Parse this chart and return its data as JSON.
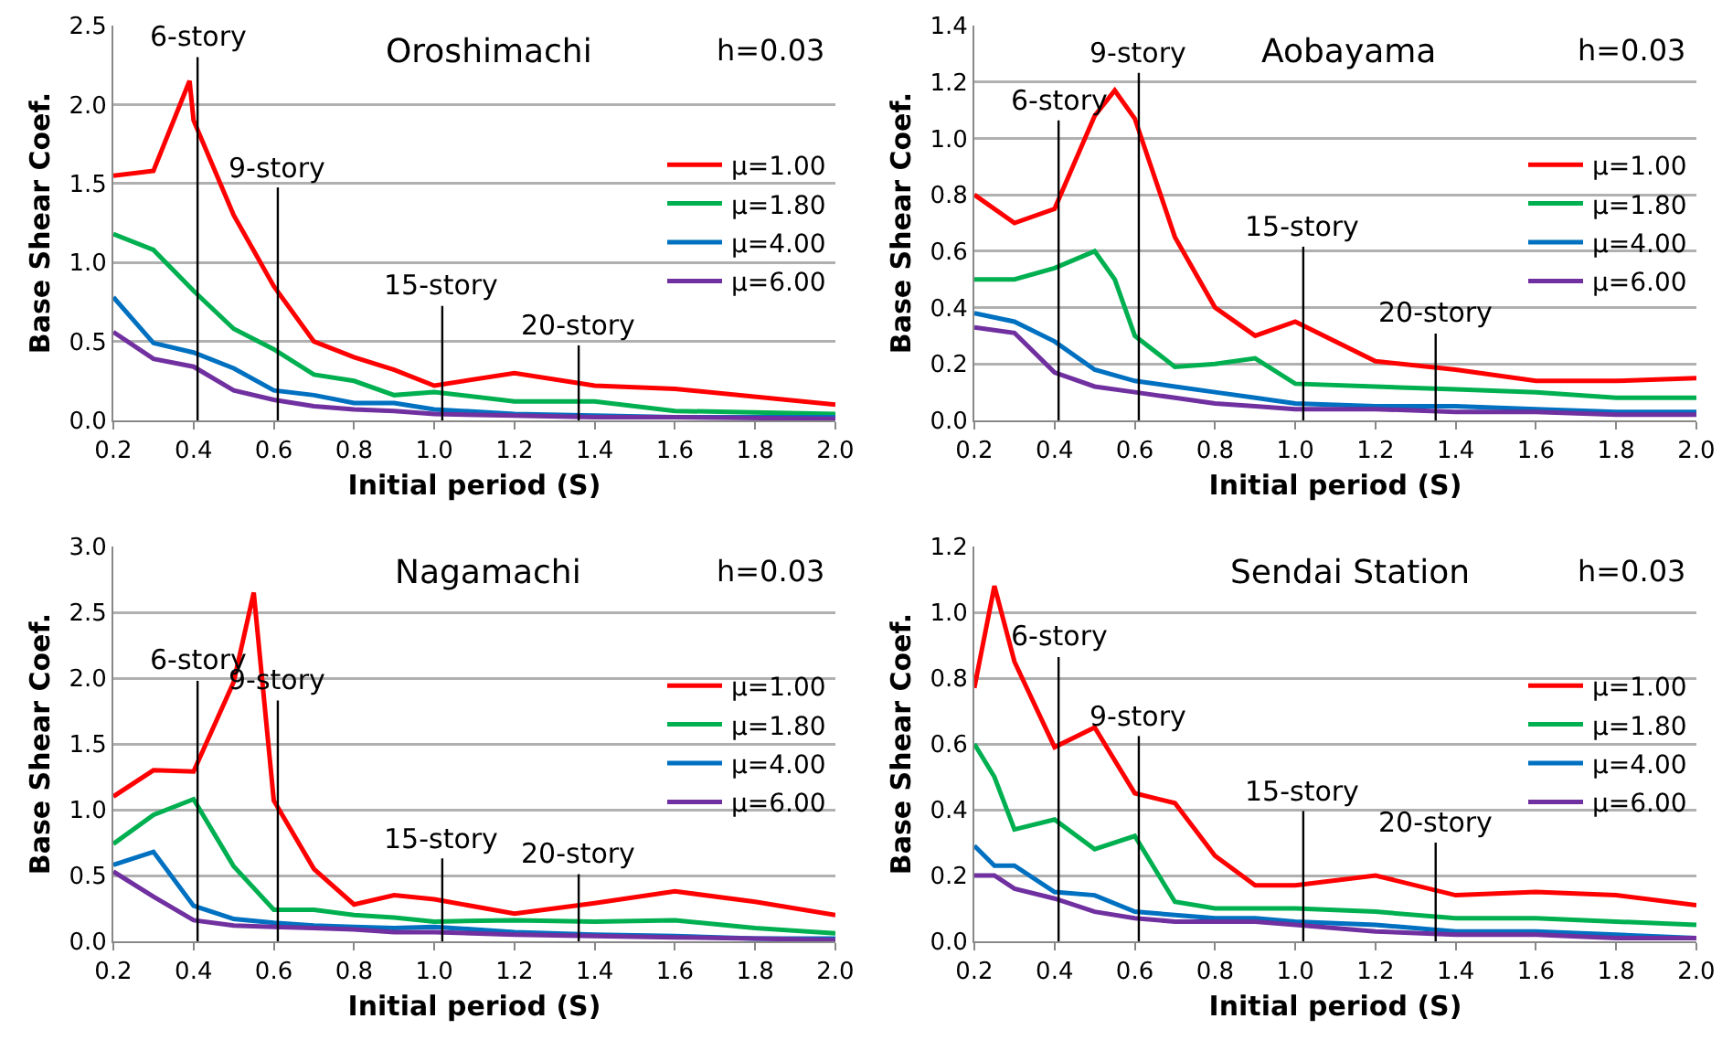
{
  "chart_data": [
    {
      "type": "line",
      "title": "Oroshimachi",
      "xlabel": "Initial period (S)",
      "ylabel": "Base Shear Coef.",
      "xlim": [
        0.2,
        2.0
      ],
      "xticks": [
        {
          "value": 0.2,
          "label": "0.2"
        },
        {
          "value": 0.4,
          "label": "0.4"
        },
        {
          "value": 0.6,
          "label": "0.6"
        },
        {
          "value": 0.8,
          "label": "0.8"
        },
        {
          "value": 1.0,
          "label": "1.0"
        },
        {
          "value": 1.2,
          "label": "1.2"
        },
        {
          "value": 1.4,
          "label": "1.4"
        },
        {
          "value": 1.6,
          "label": "1.6"
        },
        {
          "value": 1.8,
          "label": "1.8"
        },
        {
          "value": 2.0,
          "label": "2.0"
        }
      ],
      "ylim": [
        0,
        2.5
      ],
      "yticks": [
        {
          "value": 0,
          "label": "0.0"
        },
        {
          "value": 0.5,
          "label": "0.5"
        },
        {
          "value": 1.0,
          "label": "1.0"
        },
        {
          "value": 1.5,
          "label": "1.5"
        },
        {
          "value": 2.0,
          "label": "2.0"
        },
        {
          "value": 2.5,
          "label": "2.5"
        }
      ],
      "grid": "y",
      "legend": "right",
      "series": [
        {
          "name": "μ=1.00",
          "color": "#ff0000",
          "x": [
            0.2,
            0.3,
            0.39,
            0.4,
            0.5,
            0.6,
            0.7,
            0.8,
            0.9,
            1.0,
            1.2,
            1.4,
            1.6,
            2.0
          ],
          "values": [
            1.55,
            1.58,
            2.15,
            1.9,
            1.3,
            0.85,
            0.5,
            0.4,
            0.32,
            0.22,
            0.3,
            0.22,
            0.2,
            0.1
          ]
        },
        {
          "name": "μ=1.80",
          "color": "#00b050",
          "x": [
            0.2,
            0.3,
            0.4,
            0.5,
            0.6,
            0.7,
            0.8,
            0.9,
            1.0,
            1.2,
            1.4,
            1.6,
            2.0
          ],
          "values": [
            1.18,
            1.08,
            0.82,
            0.58,
            0.45,
            0.29,
            0.25,
            0.16,
            0.18,
            0.12,
            0.12,
            0.06,
            0.04
          ]
        },
        {
          "name": "μ=4.00",
          "color": "#0070c0",
          "x": [
            0.2,
            0.3,
            0.4,
            0.5,
            0.6,
            0.7,
            0.8,
            0.9,
            1.0,
            1.2,
            1.4,
            1.6,
            2.0
          ],
          "values": [
            0.78,
            0.49,
            0.43,
            0.33,
            0.19,
            0.16,
            0.11,
            0.11,
            0.07,
            0.04,
            0.03,
            0.02,
            0.02
          ]
        },
        {
          "name": "μ=6.00",
          "color": "#7030a0",
          "x": [
            0.2,
            0.3,
            0.4,
            0.5,
            0.6,
            0.7,
            0.8,
            0.9,
            1.0,
            1.2,
            1.4,
            1.6,
            2.0
          ],
          "values": [
            0.56,
            0.39,
            0.34,
            0.19,
            0.13,
            0.09,
            0.07,
            0.06,
            0.04,
            0.03,
            0.02,
            0.02,
            0.01
          ]
        }
      ],
      "annotations": [
        "h=0.03"
      ],
      "ref_lines": [
        {
          "axis": "x",
          "value": 0.41,
          "label": "6-story"
        },
        {
          "axis": "x",
          "value": 0.61,
          "label": "9-story"
        },
        {
          "axis": "x",
          "value": 1.02,
          "label": "15-story"
        },
        {
          "axis": "x",
          "value": 1.36,
          "label": "20-story"
        }
      ]
    },
    {
      "type": "line",
      "title": "Aobayama",
      "xlabel": "Initial period (S)",
      "ylabel": "Base Shear Coef.",
      "xlim": [
        0.2,
        2.0
      ],
      "xticks": [
        {
          "value": 0.2,
          "label": "0.2"
        },
        {
          "value": 0.4,
          "label": "0.4"
        },
        {
          "value": 0.6,
          "label": "0.6"
        },
        {
          "value": 0.8,
          "label": "0.8"
        },
        {
          "value": 1.0,
          "label": "1.0"
        },
        {
          "value": 1.2,
          "label": "1.2"
        },
        {
          "value": 1.4,
          "label": "1.4"
        },
        {
          "value": 1.6,
          "label": "1.6"
        },
        {
          "value": 1.8,
          "label": "1.8"
        },
        {
          "value": 2.0,
          "label": "2.0"
        }
      ],
      "ylim": [
        0,
        1.4
      ],
      "yticks": [
        {
          "value": 0,
          "label": "0.0"
        },
        {
          "value": 0.2,
          "label": "0.2"
        },
        {
          "value": 0.4,
          "label": "0.4"
        },
        {
          "value": 0.6,
          "label": "0.6"
        },
        {
          "value": 0.8,
          "label": "0.8"
        },
        {
          "value": 1.0,
          "label": "1.0"
        },
        {
          "value": 1.2,
          "label": "1.2"
        },
        {
          "value": 1.4,
          "label": "1.4"
        }
      ],
      "grid": "y",
      "legend": "right",
      "series": [
        {
          "name": "μ=1.00",
          "color": "#ff0000",
          "x": [
            0.2,
            0.3,
            0.4,
            0.5,
            0.55,
            0.6,
            0.7,
            0.8,
            0.9,
            1.0,
            1.2,
            1.4,
            1.6,
            1.8,
            2.0
          ],
          "values": [
            0.8,
            0.7,
            0.75,
            1.08,
            1.17,
            1.07,
            0.65,
            0.4,
            0.3,
            0.35,
            0.21,
            0.18,
            0.14,
            0.14,
            0.15
          ]
        },
        {
          "name": "μ=1.80",
          "color": "#00b050",
          "x": [
            0.2,
            0.3,
            0.4,
            0.5,
            0.55,
            0.6,
            0.7,
            0.8,
            0.9,
            1.0,
            1.2,
            1.4,
            1.6,
            1.8,
            2.0
          ],
          "values": [
            0.5,
            0.5,
            0.54,
            0.6,
            0.5,
            0.3,
            0.19,
            0.2,
            0.22,
            0.13,
            0.12,
            0.11,
            0.1,
            0.08,
            0.08
          ]
        },
        {
          "name": "μ=4.00",
          "color": "#0070c0",
          "x": [
            0.2,
            0.3,
            0.4,
            0.5,
            0.6,
            0.7,
            0.8,
            0.9,
            1.0,
            1.2,
            1.4,
            1.6,
            1.8,
            2.0
          ],
          "values": [
            0.38,
            0.35,
            0.28,
            0.18,
            0.14,
            0.12,
            0.1,
            0.08,
            0.06,
            0.05,
            0.05,
            0.04,
            0.03,
            0.03
          ]
        },
        {
          "name": "μ=6.00",
          "color": "#7030a0",
          "x": [
            0.2,
            0.3,
            0.4,
            0.5,
            0.6,
            0.7,
            0.8,
            0.9,
            1.0,
            1.2,
            1.4,
            1.6,
            1.8,
            2.0
          ],
          "values": [
            0.33,
            0.31,
            0.17,
            0.12,
            0.1,
            0.08,
            0.06,
            0.05,
            0.04,
            0.04,
            0.03,
            0.03,
            0.02,
            0.02
          ]
        }
      ],
      "annotations": [
        "h=0.03"
      ],
      "ref_lines": [
        {
          "axis": "x",
          "value": 0.41,
          "label": "6-story"
        },
        {
          "axis": "x",
          "value": 0.61,
          "label": "9-story"
        },
        {
          "axis": "x",
          "value": 1.02,
          "label": "15-story"
        },
        {
          "axis": "x",
          "value": 1.35,
          "label": "20-story"
        }
      ]
    },
    {
      "type": "line",
      "title": "Nagamachi",
      "xlabel": "Initial period (S)",
      "ylabel": "Base Shear Coef.",
      "xlim": [
        0.2,
        2.0
      ],
      "xticks": [
        {
          "value": 0.2,
          "label": "0.2"
        },
        {
          "value": 0.4,
          "label": "0.4"
        },
        {
          "value": 0.6,
          "label": "0.6"
        },
        {
          "value": 0.8,
          "label": "0.8"
        },
        {
          "value": 1.0,
          "label": "1.0"
        },
        {
          "value": 1.2,
          "label": "1.2"
        },
        {
          "value": 1.4,
          "label": "1.4"
        },
        {
          "value": 1.6,
          "label": "1.6"
        },
        {
          "value": 1.8,
          "label": "1.8"
        },
        {
          "value": 2.0,
          "label": "2.0"
        }
      ],
      "ylim": [
        0,
        3.0
      ],
      "yticks": [
        {
          "value": 0,
          "label": "0.0"
        },
        {
          "value": 0.5,
          "label": "0.5"
        },
        {
          "value": 1.0,
          "label": "1.0"
        },
        {
          "value": 1.5,
          "label": "1.5"
        },
        {
          "value": 2.0,
          "label": "2.0"
        },
        {
          "value": 2.5,
          "label": "2.5"
        },
        {
          "value": 3.0,
          "label": "3.0"
        }
      ],
      "grid": "y",
      "legend": "right",
      "series": [
        {
          "name": "μ=1.00",
          "color": "#ff0000",
          "x": [
            0.2,
            0.3,
            0.4,
            0.5,
            0.55,
            0.6,
            0.7,
            0.8,
            0.9,
            1.0,
            1.2,
            1.4,
            1.6,
            1.8,
            2.0
          ],
          "values": [
            1.1,
            1.3,
            1.29,
            1.97,
            2.65,
            1.07,
            0.55,
            0.28,
            0.35,
            0.32,
            0.21,
            0.29,
            0.38,
            0.3,
            0.2
          ]
        },
        {
          "name": "μ=1.80",
          "color": "#00b050",
          "x": [
            0.2,
            0.3,
            0.4,
            0.5,
            0.6,
            0.7,
            0.8,
            0.9,
            1.0,
            1.2,
            1.4,
            1.6,
            1.8,
            2.0
          ],
          "values": [
            0.74,
            0.96,
            1.08,
            0.57,
            0.24,
            0.24,
            0.2,
            0.18,
            0.15,
            0.16,
            0.15,
            0.16,
            0.1,
            0.06
          ]
        },
        {
          "name": "μ=4.00",
          "color": "#0070c0",
          "x": [
            0.2,
            0.3,
            0.4,
            0.5,
            0.6,
            0.7,
            0.8,
            0.9,
            1.0,
            1.2,
            1.4,
            1.6,
            1.8,
            2.0
          ],
          "values": [
            0.58,
            0.68,
            0.27,
            0.17,
            0.14,
            0.12,
            0.11,
            0.1,
            0.11,
            0.07,
            0.05,
            0.04,
            0.02,
            0.02
          ]
        },
        {
          "name": "μ=6.00",
          "color": "#7030a0",
          "x": [
            0.2,
            0.3,
            0.4,
            0.5,
            0.6,
            0.7,
            0.8,
            0.9,
            1.0,
            1.2,
            1.4,
            1.6,
            1.8,
            2.0
          ],
          "values": [
            0.53,
            0.34,
            0.16,
            0.12,
            0.11,
            0.1,
            0.09,
            0.07,
            0.07,
            0.05,
            0.04,
            0.03,
            0.02,
            0.01
          ]
        }
      ],
      "annotations": [
        "h=0.03"
      ],
      "ref_lines": [
        {
          "axis": "x",
          "value": 0.41,
          "label": "6-story"
        },
        {
          "axis": "x",
          "value": 0.61,
          "label": "9-story"
        },
        {
          "axis": "x",
          "value": 1.02,
          "label": "15-story"
        },
        {
          "axis": "x",
          "value": 1.36,
          "label": "20-story"
        }
      ]
    },
    {
      "type": "line",
      "title": "Sendai Station",
      "xlabel": "Initial period (S)",
      "ylabel": "Base Shear Coef.",
      "xlim": [
        0.2,
        2.0
      ],
      "xticks": [
        {
          "value": 0.2,
          "label": "0.2"
        },
        {
          "value": 0.4,
          "label": "0.4"
        },
        {
          "value": 0.6,
          "label": "0.6"
        },
        {
          "value": 0.8,
          "label": "0.8"
        },
        {
          "value": 1.0,
          "label": "1.0"
        },
        {
          "value": 1.2,
          "label": "1.2"
        },
        {
          "value": 1.4,
          "label": "1.4"
        },
        {
          "value": 1.6,
          "label": "1.6"
        },
        {
          "value": 1.8,
          "label": "1.8"
        },
        {
          "value": 2.0,
          "label": "2.0"
        }
      ],
      "ylim": [
        0,
        1.2
      ],
      "yticks": [
        {
          "value": 0,
          "label": "0.0"
        },
        {
          "value": 0.2,
          "label": "0.2"
        },
        {
          "value": 0.4,
          "label": "0.4"
        },
        {
          "value": 0.6,
          "label": "0.6"
        },
        {
          "value": 0.8,
          "label": "0.8"
        },
        {
          "value": 1.0,
          "label": "1.0"
        },
        {
          "value": 1.2,
          "label": "1.2"
        }
      ],
      "grid": "y",
      "legend": "right",
      "series": [
        {
          "name": "μ=1.00",
          "color": "#ff0000",
          "x": [
            0.2,
            0.25,
            0.3,
            0.4,
            0.5,
            0.6,
            0.7,
            0.8,
            0.9,
            1.0,
            1.2,
            1.4,
            1.6,
            1.8,
            2.0
          ],
          "values": [
            0.77,
            1.08,
            0.85,
            0.59,
            0.65,
            0.45,
            0.42,
            0.26,
            0.17,
            0.17,
            0.2,
            0.14,
            0.15,
            0.14,
            0.11
          ]
        },
        {
          "name": "μ=1.80",
          "color": "#00b050",
          "x": [
            0.2,
            0.25,
            0.3,
            0.4,
            0.5,
            0.6,
            0.7,
            0.8,
            0.9,
            1.0,
            1.2,
            1.4,
            1.6,
            1.8,
            2.0
          ],
          "values": [
            0.6,
            0.5,
            0.34,
            0.37,
            0.28,
            0.32,
            0.12,
            0.1,
            0.1,
            0.1,
            0.09,
            0.07,
            0.07,
            0.06,
            0.05
          ]
        },
        {
          "name": "μ=4.00",
          "color": "#0070c0",
          "x": [
            0.2,
            0.25,
            0.3,
            0.4,
            0.5,
            0.6,
            0.7,
            0.8,
            0.9,
            1.0,
            1.2,
            1.4,
            1.6,
            1.8,
            2.0
          ],
          "values": [
            0.29,
            0.23,
            0.23,
            0.15,
            0.14,
            0.09,
            0.08,
            0.07,
            0.07,
            0.06,
            0.05,
            0.03,
            0.03,
            0.02,
            0.01
          ]
        },
        {
          "name": "μ=6.00",
          "color": "#7030a0",
          "x": [
            0.2,
            0.25,
            0.3,
            0.4,
            0.5,
            0.6,
            0.7,
            0.8,
            0.9,
            1.0,
            1.2,
            1.4,
            1.6,
            1.8,
            2.0
          ],
          "values": [
            0.2,
            0.2,
            0.16,
            0.13,
            0.09,
            0.07,
            0.06,
            0.06,
            0.06,
            0.05,
            0.03,
            0.02,
            0.02,
            0.01,
            0.01
          ]
        }
      ],
      "annotations": [
        "h=0.03"
      ],
      "ref_lines": [
        {
          "axis": "x",
          "value": 0.41,
          "label": "6-story"
        },
        {
          "axis": "x",
          "value": 0.61,
          "label": "9-story"
        },
        {
          "axis": "x",
          "value": 1.02,
          "label": "15-story"
        },
        {
          "axis": "x",
          "value": 1.35,
          "label": "20-story"
        }
      ]
    }
  ]
}
